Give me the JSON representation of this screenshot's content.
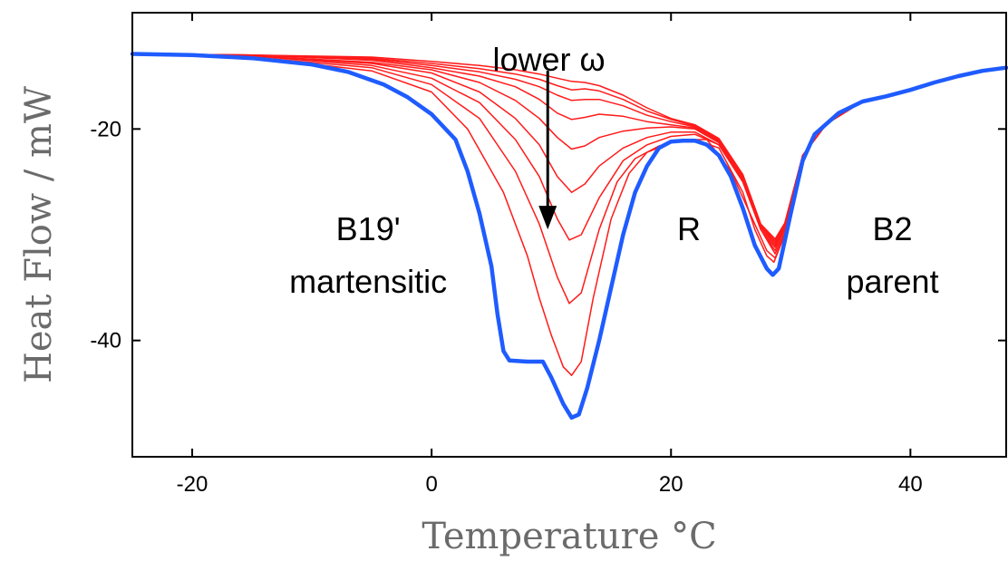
{
  "chart_data": {
    "type": "line",
    "title": "",
    "xlabel": "Temperature °C",
    "ylabel": "Heat Flow / mW",
    "xlim": [
      -25,
      48
    ],
    "ylim": [
      -51,
      -9
    ],
    "grid": false,
    "x_ticks": [
      -20,
      0,
      20,
      40
    ],
    "y_ticks": [
      -20,
      -40
    ],
    "colors": {
      "red_series": "#ff1a1a",
      "blue_series": "#1f5cff",
      "axes": "#000000",
      "axis_title": "#6b6b6b"
    },
    "series": [
      {
        "color": "#1f5cff",
        "width": 4.5,
        "points": [
          [
            -25,
            -12.9
          ],
          [
            -20,
            -13.0
          ],
          [
            -15,
            -13.3
          ],
          [
            -10,
            -13.9
          ],
          [
            -7,
            -14.6
          ],
          [
            -4,
            -15.8
          ],
          [
            -2,
            -17.0
          ],
          [
            0,
            -18.6
          ],
          [
            2,
            -21.0
          ],
          [
            3,
            -24.0
          ],
          [
            4,
            -28.0
          ],
          [
            5,
            -33.0
          ],
          [
            5.5,
            -37.5
          ],
          [
            6,
            -41.0
          ],
          [
            6.5,
            -41.9
          ],
          [
            8,
            -42.0
          ],
          [
            9.3,
            -42.0
          ],
          [
            10,
            -43.5
          ],
          [
            11,
            -46.0
          ],
          [
            11.7,
            -47.3
          ],
          [
            12.3,
            -47.0
          ],
          [
            13,
            -44.5
          ],
          [
            14,
            -40.0
          ],
          [
            15,
            -35.0
          ],
          [
            16,
            -30.0
          ],
          [
            17,
            -26.0
          ],
          [
            18,
            -23.5
          ],
          [
            19,
            -21.8
          ],
          [
            20,
            -21.2
          ],
          [
            21,
            -21.1
          ],
          [
            22,
            -21.1
          ],
          [
            23,
            -21.5
          ],
          [
            24,
            -22.5
          ],
          [
            25,
            -24.5
          ],
          [
            26,
            -27.5
          ],
          [
            27,
            -31.0
          ],
          [
            28,
            -33.2
          ],
          [
            28.5,
            -33.8
          ],
          [
            29,
            -33.2
          ],
          [
            30,
            -28.0
          ],
          [
            31,
            -23.0
          ],
          [
            32,
            -20.5
          ],
          [
            34,
            -18.5
          ],
          [
            36,
            -17.4
          ],
          [
            38,
            -16.9
          ],
          [
            40,
            -16.3
          ],
          [
            42,
            -15.6
          ],
          [
            44,
            -15.0
          ],
          [
            46,
            -14.5
          ],
          [
            48,
            -14.2
          ]
        ]
      },
      {
        "color": "#ff1a1a",
        "width": 1.5,
        "points": [
          [
            -25,
            -12.9
          ],
          [
            -15,
            -13.2
          ],
          [
            -5,
            -14.5
          ],
          [
            0,
            -16.5
          ],
          [
            3,
            -20.0
          ],
          [
            6,
            -26.0
          ],
          [
            8,
            -32.0
          ],
          [
            9,
            -36.0
          ],
          [
            10,
            -39.5
          ],
          [
            11,
            -42.5
          ],
          [
            11.7,
            -43.3
          ],
          [
            12.5,
            -42.0
          ],
          [
            13.5,
            -36.0
          ],
          [
            15,
            -28.5
          ],
          [
            16.5,
            -24.2
          ],
          [
            18,
            -22.2
          ],
          [
            20,
            -21.3
          ],
          [
            22,
            -21.0
          ],
          [
            24,
            -21.8
          ],
          [
            26,
            -26.0
          ],
          [
            27,
            -29.5
          ],
          [
            28,
            -32.0
          ],
          [
            28.6,
            -32.6
          ],
          [
            29.5,
            -30.0
          ],
          [
            31,
            -22.5
          ],
          [
            33,
            -19.5
          ],
          [
            36,
            -17.4
          ],
          [
            40,
            -16.3
          ],
          [
            44,
            -15.0
          ],
          [
            48,
            -14.2
          ]
        ]
      },
      {
        "color": "#ff1a1a",
        "width": 1.5,
        "points": [
          [
            -25,
            -12.9
          ],
          [
            -15,
            -13.2
          ],
          [
            -5,
            -14.2
          ],
          [
            0,
            -15.8
          ],
          [
            4,
            -19.0
          ],
          [
            7,
            -24.0
          ],
          [
            9,
            -29.0
          ],
          [
            10.5,
            -34.0
          ],
          [
            11.5,
            -36.5
          ],
          [
            12.5,
            -35.5
          ],
          [
            14,
            -29.5
          ],
          [
            15.5,
            -25.0
          ],
          [
            17,
            -22.8
          ],
          [
            19,
            -21.6
          ],
          [
            21,
            -21.0
          ],
          [
            23,
            -21.0
          ],
          [
            25,
            -24.0
          ],
          [
            27,
            -29.0
          ],
          [
            28,
            -31.5
          ],
          [
            28.7,
            -32.2
          ],
          [
            29.5,
            -30.0
          ],
          [
            31,
            -22.5
          ],
          [
            33,
            -19.5
          ],
          [
            36,
            -17.4
          ],
          [
            40,
            -16.3
          ],
          [
            44,
            -15.0
          ],
          [
            48,
            -14.2
          ]
        ]
      },
      {
        "color": "#ff1a1a",
        "width": 1.5,
        "points": [
          [
            -25,
            -12.9
          ],
          [
            -15,
            -13.1
          ],
          [
            -5,
            -14.0
          ],
          [
            0,
            -15.2
          ],
          [
            4,
            -17.5
          ],
          [
            7,
            -21.0
          ],
          [
            9,
            -24.5
          ],
          [
            10.5,
            -28.5
          ],
          [
            11.5,
            -30.5
          ],
          [
            12.5,
            -30.0
          ],
          [
            14,
            -26.5
          ],
          [
            16,
            -23.0
          ],
          [
            18,
            -21.5
          ],
          [
            20,
            -20.7
          ],
          [
            22,
            -20.5
          ],
          [
            24,
            -21.5
          ],
          [
            26,
            -25.0
          ],
          [
            27.5,
            -29.5
          ],
          [
            28.7,
            -31.8
          ],
          [
            29.5,
            -29.8
          ],
          [
            31,
            -22.5
          ],
          [
            33,
            -19.5
          ],
          [
            36,
            -17.4
          ],
          [
            40,
            -16.3
          ],
          [
            44,
            -15.0
          ],
          [
            48,
            -14.2
          ]
        ]
      },
      {
        "color": "#ff1a1a",
        "width": 1.5,
        "points": [
          [
            -25,
            -12.9
          ],
          [
            -15,
            -13.1
          ],
          [
            -5,
            -13.8
          ],
          [
            0,
            -14.7
          ],
          [
            4,
            -16.5
          ],
          [
            7,
            -19.0
          ],
          [
            9,
            -21.5
          ],
          [
            10.5,
            -24.5
          ],
          [
            11.7,
            -26.0
          ],
          [
            12.8,
            -25.2
          ],
          [
            14,
            -23.5
          ],
          [
            16,
            -21.8
          ],
          [
            18,
            -20.8
          ],
          [
            20,
            -20.3
          ],
          [
            22,
            -20.3
          ],
          [
            24,
            -21.5
          ],
          [
            26,
            -25.0
          ],
          [
            27.5,
            -29.5
          ],
          [
            28.7,
            -31.5
          ],
          [
            29.5,
            -29.5
          ],
          [
            31,
            -22.5
          ],
          [
            33,
            -19.5
          ],
          [
            36,
            -17.4
          ],
          [
            40,
            -16.3
          ],
          [
            44,
            -15.0
          ],
          [
            48,
            -14.2
          ]
        ]
      },
      {
        "color": "#ff1a1a",
        "width": 1.5,
        "points": [
          [
            -25,
            -12.9
          ],
          [
            -15,
            -13.1
          ],
          [
            -5,
            -13.7
          ],
          [
            0,
            -14.4
          ],
          [
            4,
            -15.6
          ],
          [
            7,
            -17.3
          ],
          [
            9,
            -19.0
          ],
          [
            10.5,
            -20.8
          ],
          [
            11.7,
            -21.9
          ],
          [
            12.8,
            -21.6
          ],
          [
            14,
            -20.8
          ],
          [
            16,
            -20.2
          ],
          [
            18,
            -19.9
          ],
          [
            20,
            -19.8
          ],
          [
            22,
            -20.0
          ],
          [
            24,
            -21.3
          ],
          [
            26,
            -24.8
          ],
          [
            27.5,
            -29.5
          ],
          [
            28.7,
            -31.2
          ],
          [
            29.5,
            -29.3
          ],
          [
            31,
            -22.5
          ],
          [
            33,
            -19.5
          ],
          [
            36,
            -17.4
          ],
          [
            40,
            -16.3
          ],
          [
            44,
            -15.0
          ],
          [
            48,
            -14.2
          ]
        ]
      },
      {
        "color": "#ff1a1a",
        "width": 1.5,
        "points": [
          [
            -25,
            -12.9
          ],
          [
            -15,
            -13.0
          ],
          [
            -5,
            -13.5
          ],
          [
            0,
            -14.2
          ],
          [
            4,
            -15.0
          ],
          [
            7,
            -16.0
          ],
          [
            9,
            -17.2
          ],
          [
            10.5,
            -18.5
          ],
          [
            11.7,
            -19.1
          ],
          [
            12.8,
            -18.9
          ],
          [
            14,
            -18.6
          ],
          [
            16,
            -18.8
          ],
          [
            18,
            -19.3
          ],
          [
            20,
            -19.6
          ],
          [
            22,
            -19.9
          ],
          [
            24,
            -21.2
          ],
          [
            26,
            -24.6
          ],
          [
            27.5,
            -29.3
          ],
          [
            28.7,
            -31.0
          ],
          [
            29.5,
            -29.2
          ],
          [
            31,
            -22.5
          ],
          [
            33,
            -19.5
          ],
          [
            36,
            -17.4
          ],
          [
            40,
            -16.3
          ],
          [
            44,
            -15.0
          ],
          [
            48,
            -14.2
          ]
        ]
      },
      {
        "color": "#ff1a1a",
        "width": 1.5,
        "points": [
          [
            -25,
            -12.9
          ],
          [
            -15,
            -13.0
          ],
          [
            -5,
            -13.4
          ],
          [
            0,
            -14.0
          ],
          [
            4,
            -14.6
          ],
          [
            7,
            -15.3
          ],
          [
            9,
            -16.0
          ],
          [
            10.5,
            -16.8
          ],
          [
            11.7,
            -17.3
          ],
          [
            12.8,
            -17.2
          ],
          [
            14,
            -17.2
          ],
          [
            16,
            -17.8
          ],
          [
            18,
            -18.7
          ],
          [
            20,
            -19.3
          ],
          [
            22,
            -19.8
          ],
          [
            24,
            -21.1
          ],
          [
            26,
            -24.5
          ],
          [
            27.5,
            -29.2
          ],
          [
            28.7,
            -30.8
          ],
          [
            29.5,
            -29.0
          ],
          [
            31,
            -22.5
          ],
          [
            33,
            -19.5
          ],
          [
            36,
            -17.4
          ],
          [
            40,
            -16.3
          ],
          [
            44,
            -15.0
          ],
          [
            48,
            -14.2
          ]
        ]
      },
      {
        "color": "#ff1a1a",
        "width": 1.5,
        "points": [
          [
            -25,
            -12.9
          ],
          [
            -15,
            -13.0
          ],
          [
            -5,
            -13.3
          ],
          [
            0,
            -13.8
          ],
          [
            4,
            -14.3
          ],
          [
            7,
            -14.8
          ],
          [
            9,
            -15.3
          ],
          [
            10.5,
            -15.9
          ],
          [
            11.7,
            -16.3
          ],
          [
            12.8,
            -16.2
          ],
          [
            14,
            -16.4
          ],
          [
            16,
            -17.2
          ],
          [
            18,
            -18.3
          ],
          [
            20,
            -19.1
          ],
          [
            22,
            -19.7
          ],
          [
            24,
            -21.0
          ],
          [
            26,
            -24.4
          ],
          [
            27.5,
            -29.1
          ],
          [
            28.7,
            -30.6
          ],
          [
            29.5,
            -29.0
          ],
          [
            31,
            -22.5
          ],
          [
            33,
            -19.5
          ],
          [
            36,
            -17.4
          ],
          [
            40,
            -16.3
          ],
          [
            44,
            -15.0
          ],
          [
            48,
            -14.2
          ]
        ]
      },
      {
        "color": "#ff1a1a",
        "width": 1.5,
        "points": [
          [
            -25,
            -12.9
          ],
          [
            -15,
            -13.0
          ],
          [
            -5,
            -13.2
          ],
          [
            0,
            -13.6
          ],
          [
            4,
            -14.0
          ],
          [
            7,
            -14.4
          ],
          [
            9,
            -14.8
          ],
          [
            10.5,
            -15.2
          ],
          [
            11.7,
            -15.5
          ],
          [
            12.8,
            -15.6
          ],
          [
            14,
            -15.9
          ],
          [
            16,
            -16.8
          ],
          [
            18,
            -18.0
          ],
          [
            20,
            -19.0
          ],
          [
            22,
            -19.6
          ],
          [
            24,
            -20.9
          ],
          [
            26,
            -24.3
          ],
          [
            27.5,
            -29.0
          ],
          [
            28.7,
            -30.4
          ],
          [
            29.5,
            -28.9
          ],
          [
            31,
            -22.5
          ],
          [
            33,
            -19.5
          ],
          [
            36,
            -17.4
          ],
          [
            40,
            -16.3
          ],
          [
            44,
            -15.0
          ],
          [
            48,
            -14.2
          ]
        ]
      }
    ],
    "annotations": [
      {
        "text": "lower ω",
        "x": 9.8,
        "y": -14.5,
        "anchor": "middle"
      },
      {
        "text": "B19'",
        "x": -5.3,
        "y": -30.5,
        "anchor": "middle"
      },
      {
        "text": "martensitic",
        "x": -5.3,
        "y": -35.5,
        "anchor": "middle"
      },
      {
        "text": "R",
        "x": 21.5,
        "y": -30.5,
        "anchor": "middle"
      },
      {
        "text": "B2",
        "x": 38.5,
        "y": -30.5,
        "anchor": "middle"
      },
      {
        "text": "parent",
        "x": 38.5,
        "y": -35.5,
        "anchor": "middle"
      }
    ],
    "arrow": {
      "x": 9.7,
      "y_start": -14.5,
      "y_end": -29.5,
      "direction": "down"
    }
  }
}
